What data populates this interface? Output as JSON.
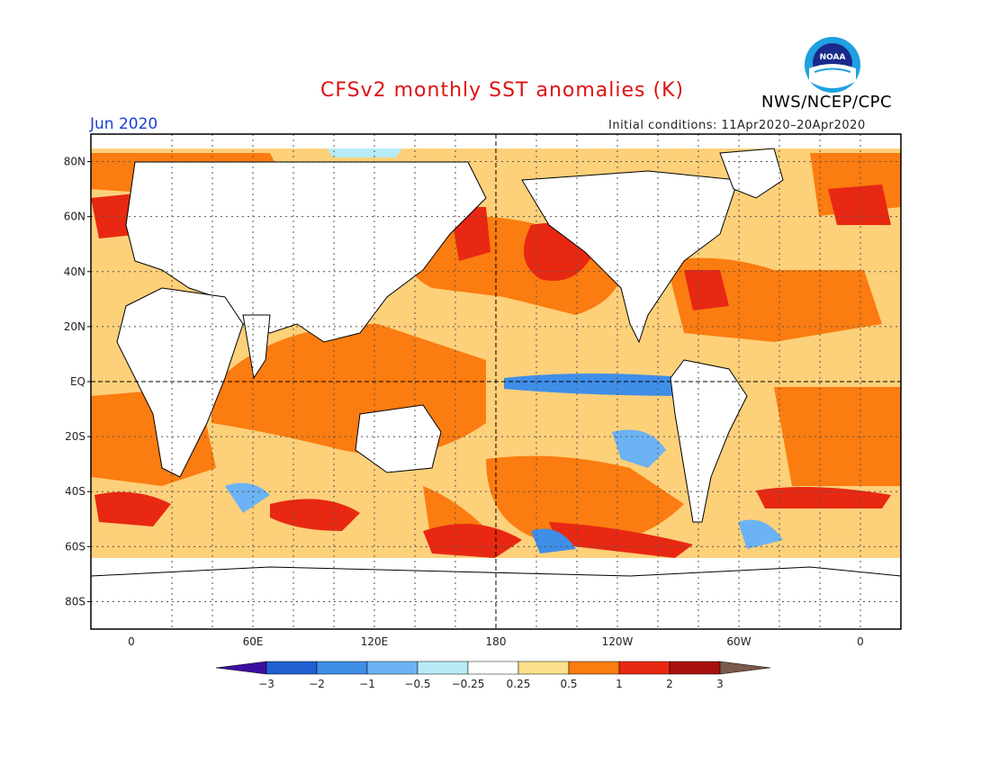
{
  "header": {
    "title": "CFSv2 monthly SST anomalies (K)",
    "agency": "NWS/NCEP/CPC",
    "logo_text": "NOAA",
    "month": "Jun 2020",
    "initial_conditions": "Initial conditions: 11Apr2020–20Apr2020"
  },
  "map": {
    "lat_labels": [
      "80N",
      "60N",
      "40N",
      "20N",
      "EQ",
      "20S",
      "40S",
      "60S",
      "80S"
    ],
    "lon_labels": [
      "0",
      "60E",
      "120E",
      "180",
      "120W",
      "60W",
      "0"
    ],
    "lat_range": [
      -90,
      90
    ],
    "lon_range": [
      -20,
      380
    ],
    "gridlines": "dotted",
    "highlighted_lines": [
      "Equator",
      "180"
    ]
  },
  "colorbar": {
    "tick_labels": [
      "−3",
      "−2",
      "−1",
      "−0.5",
      "−0.25",
      "0.25",
      "0.5",
      "1",
      "2",
      "3"
    ],
    "colors": [
      "#3a0fa0",
      "#1f5fd0",
      "#3f8ee8",
      "#6cb3f5",
      "#b7ecf7",
      "#ffffff",
      "#fce08a",
      "#fb7c10",
      "#e82812",
      "#a80f0f",
      "#7a5a4a"
    ]
  }
}
